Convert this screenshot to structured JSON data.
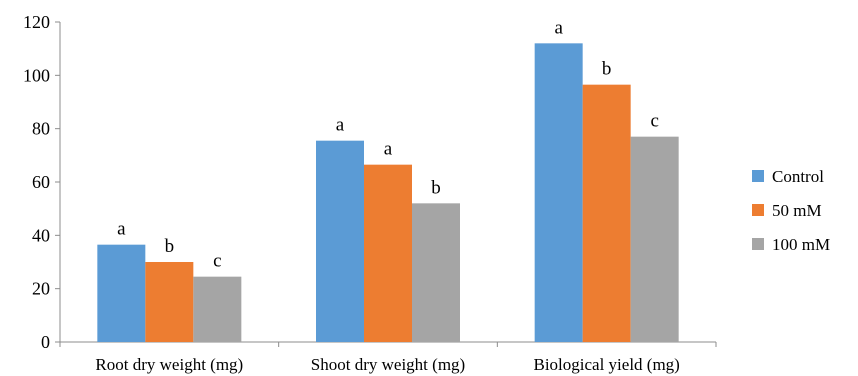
{
  "chart_data": {
    "type": "bar",
    "categories": [
      "Root dry weight (mg)",
      "Shoot dry weight (mg)",
      "Biological yield (mg)"
    ],
    "series": [
      {
        "name": "Control",
        "color": "#5b9bd5",
        "values": [
          36.5,
          75.5,
          112
        ],
        "letters": [
          "a",
          "a",
          "a"
        ]
      },
      {
        "name": "50 mM",
        "color": "#ed7d31",
        "values": [
          30,
          66.5,
          96.5
        ],
        "letters": [
          "b",
          "a",
          "b"
        ]
      },
      {
        "name": "100 mM",
        "color": "#a5a5a5",
        "values": [
          24.5,
          52,
          77
        ],
        "letters": [
          "c",
          "b",
          "c"
        ]
      }
    ],
    "ylim": [
      0,
      120
    ],
    "yticks": [
      0,
      20,
      40,
      60,
      80,
      100,
      120
    ],
    "grid": false,
    "legend_position": "right",
    "title": "",
    "xlabel": "",
    "ylabel": ""
  }
}
